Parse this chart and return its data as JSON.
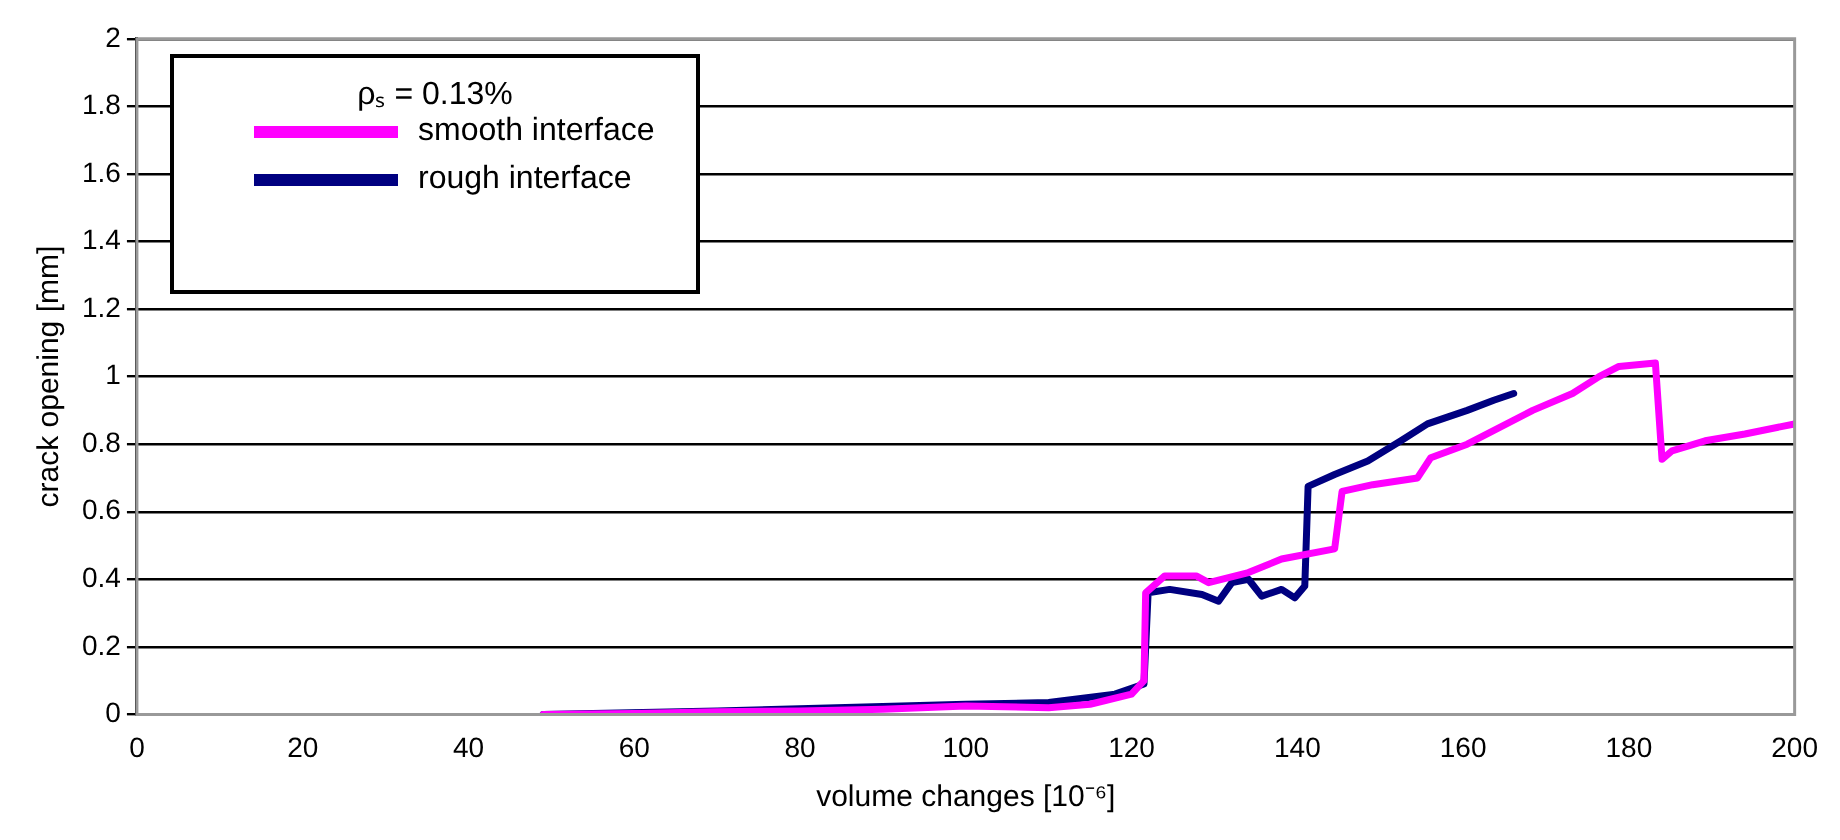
{
  "chart_data": {
    "type": "line",
    "xlabel": "volume changes [10⁻⁶]",
    "ylabel": "crack opening [mm]",
    "legend_title": "ρₛ = 0.13%",
    "xlim": [
      0,
      200
    ],
    "xticks": [
      0,
      20,
      40,
      60,
      80,
      100,
      120,
      140,
      160,
      180,
      200
    ],
    "ylim": [
      0,
      2
    ],
    "yticks": [
      0,
      0.2,
      0.4,
      0.6,
      0.8,
      1,
      1.2,
      1.4,
      1.6,
      1.8,
      2
    ],
    "grid": "y",
    "legend": "top left",
    "marker": "none",
    "line_style": "solid",
    "series": [
      {
        "name": "smooth interface",
        "color": "#ff00ff",
        "x": [
          49,
          60,
          70,
          80,
          90,
          100,
          110,
          115,
          120,
          121.5,
          121.7,
          124,
          127.8,
          129.3,
          134.1,
          138.1,
          144.5,
          145.4,
          149.1,
          154.5,
          156.1,
          160.5,
          168.4,
          173.2,
          176.4,
          178.8,
          183.2,
          184,
          185.2,
          189.2,
          194,
          200
        ],
        "values": [
          0,
          0.003,
          0.008,
          0.01,
          0.015,
          0.025,
          0.02,
          0.03,
          0.06,
          0.1,
          0.36,
          0.41,
          0.41,
          0.39,
          0.42,
          0.46,
          0.49,
          0.66,
          0.68,
          0.7,
          0.76,
          0.8,
          0.9,
          0.95,
          1,
          1.03,
          1.04,
          0.755,
          0.78,
          0.81,
          0.83,
          0.86
        ]
      },
      {
        "name": "rough interface",
        "color": "#000080",
        "x": [
          49,
          70,
          100,
          110,
          118,
          121.5,
          122,
          124.6,
          128.5,
          130.5,
          132.1,
          134.1,
          135.7,
          138.1,
          139.7,
          140.9,
          141.3,
          144.5,
          148.5,
          152.5,
          155.7,
          160.5,
          163.7,
          166.1
        ],
        "values": [
          0,
          0.01,
          0.03,
          0.035,
          0.06,
          0.09,
          0.36,
          0.37,
          0.355,
          0.335,
          0.39,
          0.4,
          0.35,
          0.37,
          0.345,
          0.38,
          0.675,
          0.71,
          0.75,
          0.81,
          0.86,
          0.9,
          0.93,
          0.95
        ]
      }
    ]
  }
}
